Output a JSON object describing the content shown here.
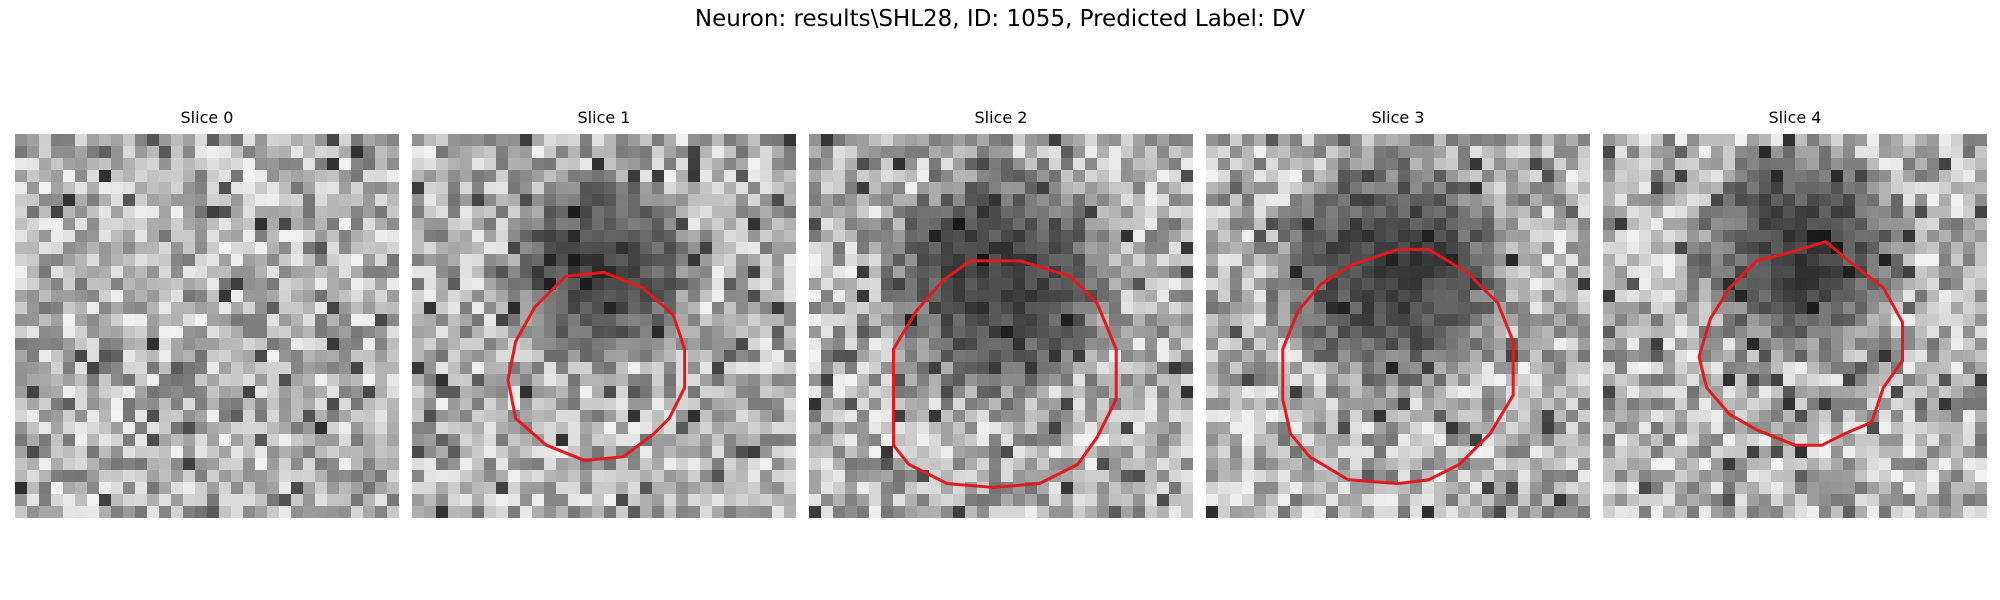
{
  "figure": {
    "title": "Neuron: results\\SHL28, ID: 1055, Predicted Label: DV"
  },
  "panels": [
    {
      "title": "Slice 0",
      "seed": 11,
      "has_contour": false,
      "contour": []
    },
    {
      "title": "Slice 1",
      "seed": 23,
      "has_contour": true,
      "contour": [
        [
          0.4,
          0.11
        ],
        [
          0.5,
          0.1
        ],
        [
          0.6,
          0.14
        ],
        [
          0.68,
          0.21
        ],
        [
          0.71,
          0.3
        ],
        [
          0.71,
          0.4
        ],
        [
          0.67,
          0.48
        ],
        [
          0.63,
          0.52
        ],
        [
          0.55,
          0.58
        ],
        [
          0.45,
          0.59
        ],
        [
          0.35,
          0.55
        ],
        [
          0.27,
          0.48
        ],
        [
          0.25,
          0.38
        ],
        [
          0.27,
          0.28
        ],
        [
          0.32,
          0.19
        ]
      ]
    },
    {
      "title": "Slice 2",
      "seed": 37,
      "has_contour": true,
      "contour": [
        [
          0.42,
          0.07
        ],
        [
          0.55,
          0.07
        ],
        [
          0.68,
          0.11
        ],
        [
          0.75,
          0.18
        ],
        [
          0.8,
          0.3
        ],
        [
          0.8,
          0.43
        ],
        [
          0.75,
          0.53
        ],
        [
          0.7,
          0.6
        ],
        [
          0.6,
          0.65
        ],
        [
          0.48,
          0.66
        ],
        [
          0.36,
          0.65
        ],
        [
          0.26,
          0.6
        ],
        [
          0.22,
          0.55
        ],
        [
          0.22,
          0.42
        ],
        [
          0.22,
          0.3
        ],
        [
          0.28,
          0.2
        ],
        [
          0.35,
          0.12
        ]
      ]
    },
    {
      "title": "Slice 3",
      "seed": 53,
      "has_contour": true,
      "contour": [
        [
          0.5,
          0.04
        ],
        [
          0.58,
          0.04
        ],
        [
          0.68,
          0.1
        ],
        [
          0.76,
          0.18
        ],
        [
          0.8,
          0.28
        ],
        [
          0.8,
          0.42
        ],
        [
          0.74,
          0.52
        ],
        [
          0.66,
          0.6
        ],
        [
          0.58,
          0.64
        ],
        [
          0.5,
          0.65
        ],
        [
          0.37,
          0.64
        ],
        [
          0.27,
          0.58
        ],
        [
          0.22,
          0.52
        ],
        [
          0.2,
          0.43
        ],
        [
          0.2,
          0.3
        ],
        [
          0.24,
          0.2
        ],
        [
          0.3,
          0.13
        ],
        [
          0.38,
          0.08
        ]
      ]
    },
    {
      "title": "Slice 4",
      "seed": 71,
      "has_contour": true,
      "contour": [
        [
          0.58,
          0.02
        ],
        [
          0.64,
          0.07
        ],
        [
          0.73,
          0.14
        ],
        [
          0.78,
          0.23
        ],
        [
          0.78,
          0.33
        ],
        [
          0.73,
          0.4
        ],
        [
          0.7,
          0.49
        ],
        [
          0.63,
          0.52
        ],
        [
          0.57,
          0.55
        ],
        [
          0.5,
          0.55
        ],
        [
          0.4,
          0.51
        ],
        [
          0.33,
          0.47
        ],
        [
          0.27,
          0.4
        ],
        [
          0.25,
          0.32
        ],
        [
          0.28,
          0.22
        ],
        [
          0.33,
          0.14
        ],
        [
          0.4,
          0.07
        ],
        [
          0.48,
          0.05
        ]
      ]
    }
  ],
  "colors": {
    "contour": "#e31a1c",
    "background": "#ffffff"
  }
}
